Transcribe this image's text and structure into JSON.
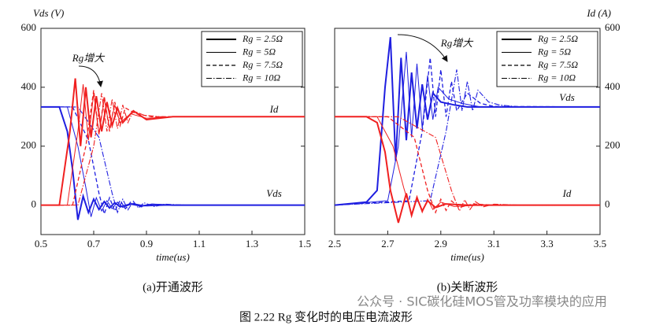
{
  "chart_data": [
    {
      "type": "line",
      "caption": "(a)开通波形",
      "y_title": "Vds (V)",
      "x_title": "time(us)",
      "xlim": [
        0.5,
        1.5
      ],
      "xticks": [
        0.5,
        0.7,
        0.9,
        1.1,
        1.3,
        1.5
      ],
      "ylim": [
        -100,
        600
      ],
      "yticks": [
        0,
        200,
        400,
        600
      ],
      "ytick_side": "left",
      "annotations": [
        "Rg增大",
        "Id",
        "Vds"
      ],
      "legend": [
        {
          "name": "Rg = 2.5Ω",
          "style": "thick"
        },
        {
          "name": "Rg = 5Ω",
          "style": "solid"
        },
        {
          "name": "Rg = 7.5Ω",
          "style": "dashed"
        },
        {
          "name": "Rg = 10Ω",
          "style": "dashdot"
        }
      ],
      "series": [
        {
          "color": "#1f1fe0",
          "style": "thick",
          "x": [
            0.5,
            0.57,
            0.6,
            0.62,
            0.64,
            0.66,
            0.68,
            0.7,
            0.72,
            0.74,
            0.76,
            0.78,
            0.8,
            0.84,
            0.88,
            0.92,
            1.0,
            1.5
          ],
          "values": [
            333,
            333,
            250,
            120,
            -50,
            30,
            -25,
            20,
            -15,
            12,
            -10,
            8,
            -6,
            4,
            -3,
            2,
            0,
            0
          ]
        },
        {
          "color": "#1f1fe0",
          "style": "solid",
          "x": [
            0.5,
            0.6,
            0.64,
            0.67,
            0.69,
            0.71,
            0.73,
            0.75,
            0.77,
            0.79,
            0.81,
            0.85,
            0.9,
            1.0,
            1.5
          ],
          "values": [
            333,
            333,
            200,
            60,
            -40,
            25,
            -20,
            15,
            -12,
            10,
            -8,
            5,
            -3,
            0,
            0
          ]
        },
        {
          "color": "#1f1fe0",
          "style": "dashed",
          "x": [
            0.5,
            0.62,
            0.68,
            0.72,
            0.74,
            0.76,
            0.78,
            0.8,
            0.82,
            0.84,
            0.88,
            0.92,
            1.0,
            1.5
          ],
          "values": [
            333,
            333,
            220,
            40,
            -30,
            25,
            -20,
            16,
            -12,
            10,
            -6,
            3,
            0,
            0
          ]
        },
        {
          "color": "#1f1fe0",
          "style": "dashdot",
          "x": [
            0.5,
            0.64,
            0.72,
            0.77,
            0.79,
            0.81,
            0.83,
            0.85,
            0.87,
            0.89,
            0.93,
            0.97,
            1.05,
            1.5
          ],
          "values": [
            333,
            333,
            230,
            40,
            -25,
            20,
            -16,
            13,
            -10,
            8,
            -5,
            3,
            0,
            0
          ]
        },
        {
          "color": "#f02020",
          "style": "thick",
          "x": [
            0.5,
            0.57,
            0.61,
            0.63,
            0.65,
            0.67,
            0.69,
            0.71,
            0.73,
            0.75,
            0.77,
            0.79,
            0.81,
            0.85,
            0.9,
            1.0,
            1.5
          ],
          "values": [
            0,
            0,
            250,
            430,
            200,
            400,
            230,
            370,
            250,
            350,
            270,
            330,
            280,
            320,
            290,
            300,
            300
          ]
        },
        {
          "color": "#f02020",
          "style": "solid",
          "x": [
            0.5,
            0.6,
            0.64,
            0.66,
            0.68,
            0.7,
            0.72,
            0.74,
            0.76,
            0.78,
            0.8,
            0.84,
            0.9,
            1.0,
            1.5
          ],
          "values": [
            0,
            0,
            250,
            410,
            220,
            380,
            240,
            360,
            260,
            340,
            280,
            310,
            295,
            300,
            300
          ]
        },
        {
          "color": "#f02020",
          "style": "dashed",
          "x": [
            0.5,
            0.62,
            0.67,
            0.7,
            0.72,
            0.74,
            0.76,
            0.78,
            0.8,
            0.82,
            0.86,
            0.92,
            1.0,
            1.5
          ],
          "values": [
            0,
            0,
            200,
            390,
            240,
            370,
            250,
            350,
            270,
            330,
            310,
            300,
            300,
            300
          ]
        },
        {
          "color": "#f02020",
          "style": "dashdot",
          "x": [
            0.5,
            0.64,
            0.7,
            0.73,
            0.75,
            0.77,
            0.79,
            0.81,
            0.83,
            0.85,
            0.89,
            0.95,
            1.05,
            1.5
          ],
          "values": [
            0,
            0,
            200,
            380,
            250,
            360,
            260,
            340,
            280,
            320,
            305,
            300,
            300,
            300
          ]
        }
      ]
    },
    {
      "type": "line",
      "caption": "(b)关断波形",
      "y_title": "Id (A)",
      "x_title": "time(us)",
      "xlim": [
        2.5,
        3.5
      ],
      "xticks": [
        2.5,
        2.7,
        2.9,
        3.1,
        3.3,
        3.5
      ],
      "ylim": [
        -100,
        600
      ],
      "yticks": [
        0,
        200,
        400,
        600
      ],
      "ytick_side": "right",
      "annotations": [
        "Rg增大",
        "Vds",
        "Id"
      ],
      "legend": [
        {
          "name": "Rg = 2.5Ω",
          "style": "thick"
        },
        {
          "name": "Rg = 5Ω",
          "style": "solid"
        },
        {
          "name": "Rg = 7.5Ω",
          "style": "dashed"
        },
        {
          "name": "Rg = 10Ω",
          "style": "dashdot"
        }
      ],
      "series": [
        {
          "color": "#1f1fe0",
          "style": "thick",
          "x": [
            2.5,
            2.62,
            2.66,
            2.69,
            2.71,
            2.73,
            2.75,
            2.77,
            2.79,
            2.81,
            2.83,
            2.85,
            2.87,
            2.9,
            2.95,
            3.0,
            3.5
          ],
          "values": [
            0,
            10,
            50,
            400,
            570,
            150,
            500,
            220,
            450,
            260,
            410,
            290,
            380,
            350,
            340,
            333,
            333
          ]
        },
        {
          "color": "#1f1fe0",
          "style": "solid",
          "x": [
            2.5,
            2.7,
            2.74,
            2.77,
            2.79,
            2.81,
            2.83,
            2.85,
            2.87,
            2.89,
            2.93,
            2.98,
            3.05,
            3.5
          ],
          "values": [
            0,
            15,
            200,
            520,
            230,
            480,
            260,
            440,
            290,
            400,
            360,
            345,
            333,
            333
          ]
        },
        {
          "color": "#1f1fe0",
          "style": "dashed",
          "x": [
            2.5,
            2.78,
            2.83,
            2.86,
            2.88,
            2.9,
            2.92,
            2.94,
            2.96,
            3.0,
            3.05,
            3.1,
            3.5
          ],
          "values": [
            0,
            15,
            250,
            500,
            300,
            460,
            300,
            420,
            320,
            380,
            345,
            335,
            333
          ]
        },
        {
          "color": "#1f1fe0",
          "style": "dashdot",
          "x": [
            2.5,
            2.86,
            2.92,
            2.96,
            2.98,
            3.0,
            3.02,
            3.04,
            3.08,
            3.12,
            3.2,
            3.5
          ],
          "values": [
            0,
            15,
            250,
            460,
            320,
            420,
            320,
            390,
            350,
            340,
            333,
            333
          ]
        },
        {
          "color": "#f02020",
          "style": "thick",
          "x": [
            2.5,
            2.62,
            2.66,
            2.69,
            2.71,
            2.74,
            2.77,
            2.79,
            2.81,
            2.83,
            2.85,
            2.88,
            2.92,
            3.0,
            3.5
          ],
          "values": [
            300,
            300,
            280,
            180,
            50,
            -60,
            40,
            -35,
            25,
            -20,
            15,
            -8,
            4,
            0,
            0
          ]
        },
        {
          "color": "#f02020",
          "style": "solid",
          "x": [
            2.5,
            2.66,
            2.72,
            2.76,
            2.79,
            2.81,
            2.83,
            2.85,
            2.87,
            2.9,
            2.95,
            3.05,
            3.5
          ],
          "values": [
            300,
            300,
            200,
            60,
            -30,
            30,
            -25,
            20,
            -15,
            10,
            -5,
            0,
            0
          ]
        },
        {
          "color": "#f02020",
          "style": "dashed",
          "x": [
            2.5,
            2.7,
            2.8,
            2.85,
            2.88,
            2.9,
            2.92,
            2.94,
            2.97,
            3.02,
            3.1,
            3.5
          ],
          "values": [
            300,
            300,
            230,
            50,
            -25,
            20,
            -18,
            14,
            -8,
            4,
            0,
            0
          ]
        },
        {
          "color": "#f02020",
          "style": "dashdot",
          "x": [
            2.5,
            2.74,
            2.88,
            2.94,
            2.97,
            2.99,
            3.01,
            3.03,
            3.06,
            3.1,
            3.2,
            3.5
          ],
          "values": [
            300,
            300,
            230,
            50,
            -20,
            18,
            -15,
            12,
            -6,
            3,
            0,
            0
          ]
        }
      ]
    }
  ],
  "figure_caption": "图 2.22 Rg 变化时的电压电流波形",
  "watermark": "公众号 · SIC碳化硅MOS管及功率模块的应用"
}
